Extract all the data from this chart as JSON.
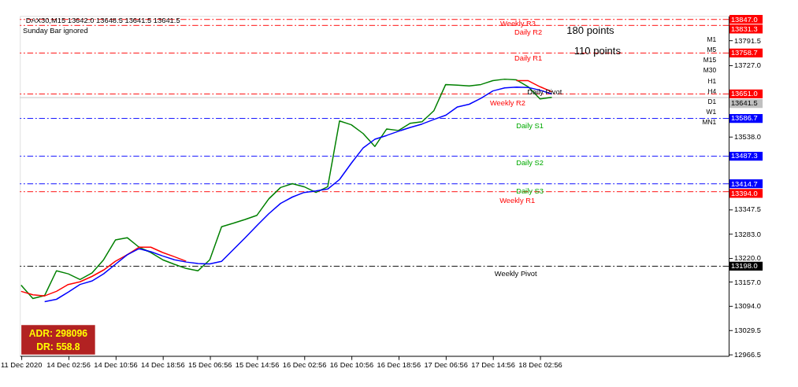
{
  "chart_data": {
    "type": "line",
    "categories": [
      "11 Dec 2020",
      null,
      null,
      null,
      "14 Dec 02:56",
      null,
      null,
      null,
      "14 Dec 10:56",
      null,
      null,
      null,
      "14 Dec 18:56",
      null,
      null,
      null,
      "15 Dec 06:56",
      null,
      null,
      null,
      "15 Dec 14:56",
      null,
      null,
      null,
      "16 Dec 02:56",
      null,
      null,
      null,
      "16 Dec 10:56",
      null,
      null,
      null,
      "16 Dec 18:56",
      null,
      null,
      null,
      "17 Dec 06:56",
      null,
      null,
      null,
      "17 Dec 14:56",
      null,
      null,
      null,
      "18 Dec 02:56",
      null,
      null,
      null,
      null,
      null,
      null,
      null,
      null,
      null,
      null,
      null,
      null,
      null,
      null,
      null,
      null
    ],
    "series": [
      {
        "color": "#008000",
        "values": [
          13148,
          13113,
          13121,
          13186,
          13178,
          13163,
          13180,
          13215,
          13267,
          13273,
          13248,
          13234,
          13215,
          13203,
          13192,
          13186,
          13215,
          13302,
          13311,
          13321,
          13332,
          13375,
          13405,
          13415,
          13407,
          13392,
          13407,
          13580,
          13570,
          13547,
          13513,
          13559,
          13555,
          13574,
          13578,
          13607,
          13676,
          13674,
          13672,
          13676,
          13686,
          13690,
          13688,
          13670,
          13638,
          13642,
          null,
          null,
          null,
          null,
          null,
          null,
          null,
          null,
          null,
          null,
          null,
          null,
          null,
          null,
          null
        ]
      },
      {
        "color": "#ff0000",
        "values": [
          13132,
          13123,
          13120,
          13132,
          13150,
          13157,
          13171,
          13188,
          13211,
          13228,
          13248,
          13248,
          13234,
          13223,
          13211,
          null,
          null,
          null,
          null,
          null,
          null,
          null,
          null,
          null,
          null,
          null,
          null,
          null,
          null,
          null,
          null,
          null,
          null,
          null,
          null,
          null,
          null,
          null,
          null,
          null,
          null,
          null,
          13686,
          13686,
          13670,
          13657,
          null,
          null,
          null,
          null,
          null,
          null,
          null,
          null,
          null,
          null,
          null,
          null,
          null,
          null,
          null
        ]
      },
      {
        "color": "#0000ff",
        "values": [
          null,
          null,
          13105,
          13111,
          13130,
          13150,
          13159,
          13178,
          13203,
          13228,
          13244,
          13236,
          13225,
          13215,
          13209,
          13205,
          13204,
          13211,
          13242,
          13273,
          13305,
          13336,
          13363,
          13380,
          13392,
          13396,
          13401,
          13426,
          13469,
          13509,
          13532,
          13542,
          13553,
          13563,
          13572,
          13584,
          13595,
          13617,
          13624,
          13640,
          13659,
          13667,
          13669,
          13668,
          13661,
          13651,
          null,
          null,
          null,
          null,
          null,
          null,
          null,
          null,
          null,
          null,
          null,
          null,
          null,
          null,
          null
        ]
      }
    ],
    "ylim": [
      12962,
      13856
    ],
    "yticks": [
      13791.5,
      {
        "value": 13727,
        "label": "13727.0"
      },
      {
        "value": 13538,
        "label": "13538.0"
      },
      13347.5,
      {
        "value": 13283,
        "label": "13283.0"
      },
      {
        "value": 13220,
        "label": "13220.0"
      },
      {
        "value": 13157,
        "label": "13157.0"
      },
      {
        "value": 13094,
        "label": "13094.0"
      },
      13029.5,
      12966.5
    ],
    "ref_lines": [
      {
        "axis": "y",
        "value": 13847.0,
        "label": "13847.0",
        "color": "#ff0000",
        "line_style": "dashed"
      },
      {
        "axis": "y",
        "value": 13831.3,
        "label": "13831.3",
        "color": "#ff0000",
        "line_style": "dashed"
      },
      {
        "axis": "y",
        "value": 13758.7,
        "label": "13758.7",
        "color": "#ff0000",
        "line_style": "dashed"
      },
      {
        "axis": "y",
        "value": 13651.0,
        "label": "13651.0",
        "color": "#ff0000",
        "line_style": "dashed"
      },
      {
        "axis": "y",
        "value": 13641.5,
        "label": "13641.5",
        "color": "#c0c0c0",
        "line_style": "solid"
      },
      {
        "axis": "y",
        "value": 13586.7,
        "label": "13586.7",
        "color": "#0000ff",
        "line_style": "dashed"
      },
      {
        "axis": "y",
        "value": 13487.3,
        "label": "13487.3",
        "color": "#0000ff",
        "line_style": "dashed"
      },
      {
        "axis": "y",
        "value": 13414.7,
        "label": "13414.7",
        "color": "#0000ff",
        "line_style": "dashed"
      },
      {
        "axis": "y",
        "value": 13394.0,
        "label": "13394.0",
        "color": "#ff0000",
        "line_style": "dashed"
      },
      {
        "axis": "y",
        "value": 13198.0,
        "label": "13198.0",
        "color": "#000000",
        "line_style": "dashed"
      }
    ],
    "annotations": [
      "Weekly R3",
      "Daily R2",
      "Daily R1",
      "Daily Pivot",
      "Weekly R2",
      "Daily S1",
      "Daily S2",
      "Daily S3",
      "Weekly R1",
      "Weekly Pivot",
      "DAX30,M15  13642.0 13648.5 13641.5 13641.5",
      "Sunday Bar ignored",
      "180 points",
      "110 points",
      "ADR: 298096",
      "DR: 558.8",
      "M1",
      "M5",
      "M15",
      "M30",
      "H1",
      "H4",
      "D1",
      "W1",
      "MN1"
    ],
    "grid": false
  }
}
